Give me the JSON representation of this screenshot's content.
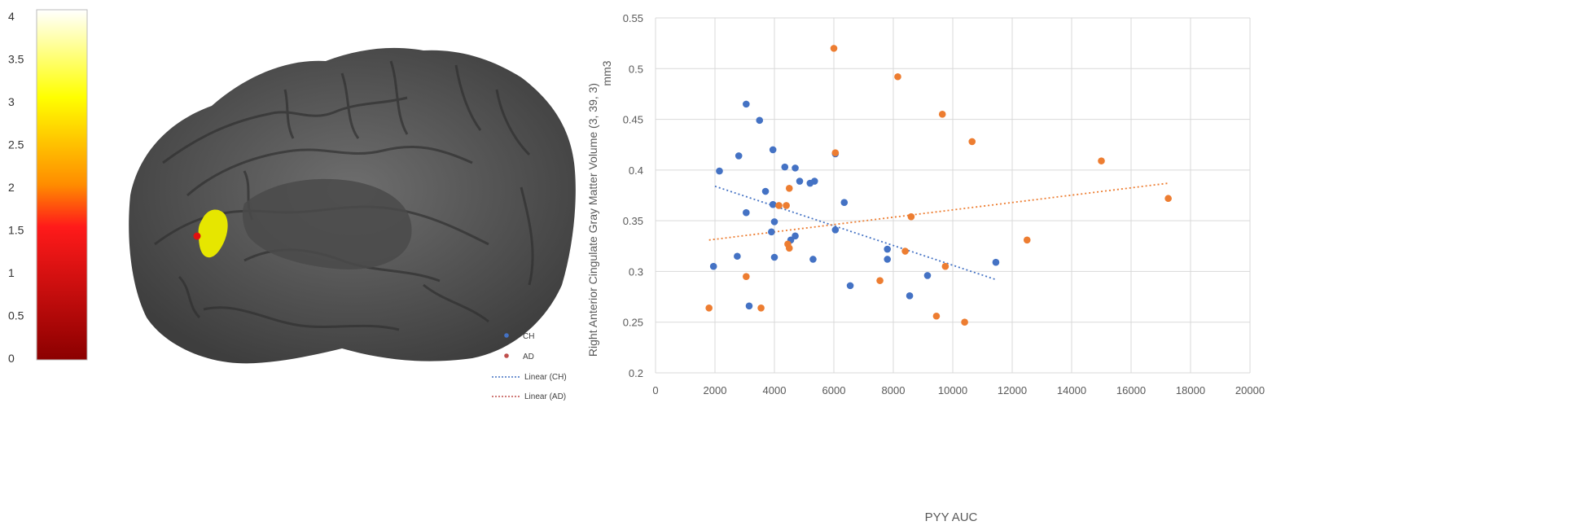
{
  "colorbar": {
    "ticks": [
      "4",
      "3.5",
      "3",
      "2.5",
      "2",
      "1.5",
      "1",
      "0.5",
      "0"
    ],
    "colors": {
      "bottom": "#8b0000",
      "red": "#ff1a1a",
      "orange": "#ff8c00",
      "yellow": "#ffff00",
      "top": "#ffffff"
    }
  },
  "brain": {
    "surface_color": "#5a5a5a",
    "cluster_color": "#e6e600",
    "marker_color": "#e01010"
  },
  "legend": {
    "items": [
      {
        "label": "CH",
        "kind": "marker",
        "color": "#4472c4"
      },
      {
        "label": "AD",
        "kind": "marker",
        "color": "#c0504d"
      },
      {
        "label": "Linear (CH)",
        "kind": "line",
        "color": "#4472c4"
      },
      {
        "label": "Linear (AD)",
        "kind": "line",
        "color": "#c0504d"
      }
    ]
  },
  "chart_data": {
    "type": "scatter",
    "title": "",
    "xlabel": "PYY AUC",
    "ylabel_line1": "Right Anterior Cingulate Gray Matter Volume (3, 39, 3)",
    "ylabel_line2": "mm3",
    "xlim": [
      0,
      20000
    ],
    "ylim": [
      0.2,
      0.55
    ],
    "xticks": [
      0,
      2000,
      4000,
      6000,
      8000,
      10000,
      12000,
      14000,
      16000,
      18000,
      20000
    ],
    "yticks": [
      0.2,
      0.25,
      0.3,
      0.35,
      0.4,
      0.45,
      0.5,
      0.55
    ],
    "xtick_labels": [
      "0",
      "2000",
      "4000",
      "6000",
      "8000",
      "10000",
      "12000",
      "14000",
      "16000",
      "18000",
      "20000"
    ],
    "ytick_labels": [
      "0.2",
      "0.25",
      "0.3",
      "0.35",
      "0.4",
      "0.45",
      "0.5",
      "0.55"
    ],
    "grid": true,
    "series": [
      {
        "color": "#4472c4",
        "points": [
          [
            3050,
            0.465
          ],
          [
            3500,
            0.449
          ],
          [
            2800,
            0.414
          ],
          [
            3950,
            0.42
          ],
          [
            2150,
            0.399
          ],
          [
            4350,
            0.403
          ],
          [
            4700,
            0.402
          ],
          [
            6050,
            0.416
          ],
          [
            4850,
            0.389
          ],
          [
            5200,
            0.387
          ],
          [
            5350,
            0.389
          ],
          [
            3700,
            0.379
          ],
          [
            3950,
            0.366
          ],
          [
            6350,
            0.368
          ],
          [
            3050,
            0.358
          ],
          [
            4000,
            0.349
          ],
          [
            3900,
            0.339
          ],
          [
            4700,
            0.335
          ],
          [
            4550,
            0.331
          ],
          [
            6050,
            0.341
          ],
          [
            2750,
            0.315
          ],
          [
            4000,
            0.314
          ],
          [
            5300,
            0.312
          ],
          [
            1950,
            0.305
          ],
          [
            3150,
            0.266
          ],
          [
            6550,
            0.286
          ],
          [
            7800,
            0.322
          ],
          [
            7800,
            0.312
          ],
          [
            8550,
            0.276
          ],
          [
            9150,
            0.296
          ],
          [
            11450,
            0.309
          ]
        ]
      },
      {
        "color": "#ed7d31",
        "points": [
          [
            6000,
            0.52
          ],
          [
            8150,
            0.492
          ],
          [
            9650,
            0.455
          ],
          [
            10650,
            0.428
          ],
          [
            6050,
            0.417
          ],
          [
            15000,
            0.409
          ],
          [
            4500,
            0.382
          ],
          [
            4150,
            0.365
          ],
          [
            4400,
            0.365
          ],
          [
            8600,
            0.354
          ],
          [
            17250,
            0.372
          ],
          [
            12500,
            0.331
          ],
          [
            4450,
            0.327
          ],
          [
            4500,
            0.323
          ],
          [
            8400,
            0.32
          ],
          [
            9750,
            0.305
          ],
          [
            3050,
            0.295
          ],
          [
            7550,
            0.291
          ],
          [
            1800,
            0.264
          ],
          [
            3550,
            0.264
          ],
          [
            9450,
            0.256
          ],
          [
            10400,
            0.25
          ]
        ]
      }
    ],
    "trendlines": [
      {
        "color": "#4472c4",
        "from": [
          2000,
          0.384
        ],
        "to": [
          11450,
          0.292
        ]
      },
      {
        "color": "#ed7d31",
        "from": [
          1800,
          0.331
        ],
        "to": [
          17250,
          0.387
        ]
      }
    ]
  }
}
